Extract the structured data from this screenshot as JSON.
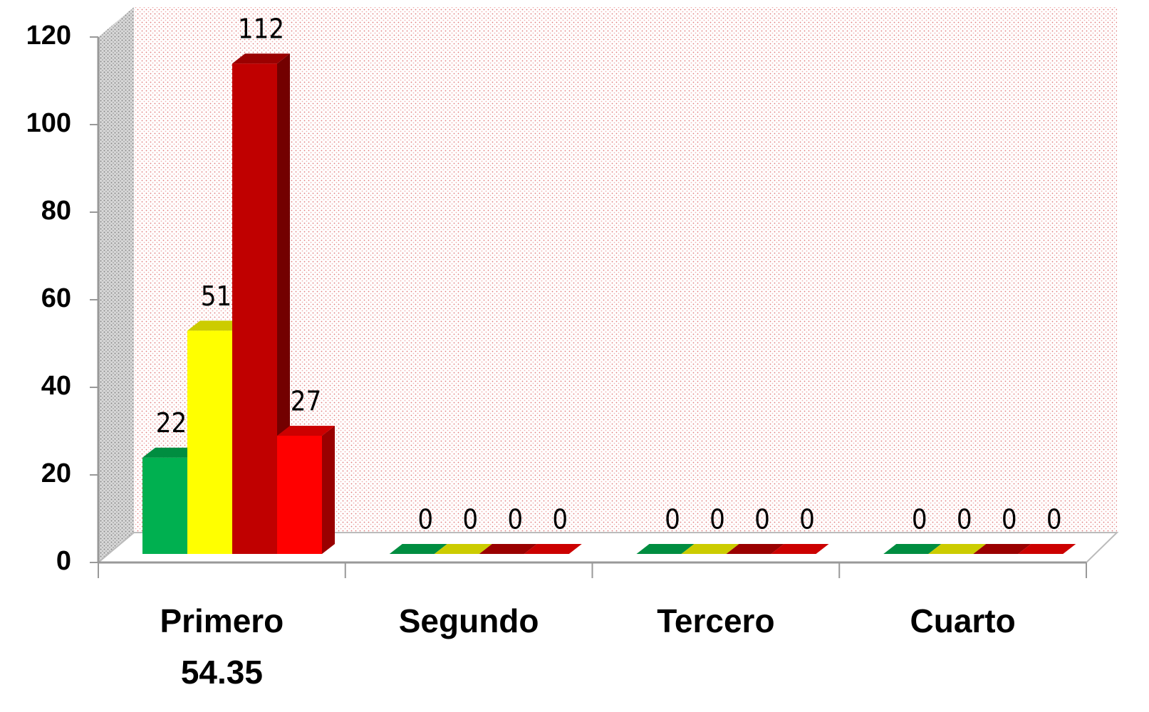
{
  "chart_data": {
    "type": "bar3d",
    "categories": [
      "Primero",
      "Segundo",
      "Tercero",
      "Cuarto"
    ],
    "annotation": "54.35",
    "series": [
      {
        "color": "#00b050",
        "values": [
          22,
          0,
          0,
          0
        ]
      },
      {
        "color": "#ffff00",
        "values": [
          51,
          0,
          0,
          0
        ]
      },
      {
        "color": "#c00000",
        "values": [
          112,
          0,
          0,
          0
        ]
      },
      {
        "color": "#ff0000",
        "values": [
          27,
          0,
          0,
          0
        ]
      }
    ],
    "ylim": [
      0,
      120
    ],
    "yticks": [
      0,
      20,
      40,
      60,
      80,
      100,
      120
    ],
    "grid": false
  }
}
